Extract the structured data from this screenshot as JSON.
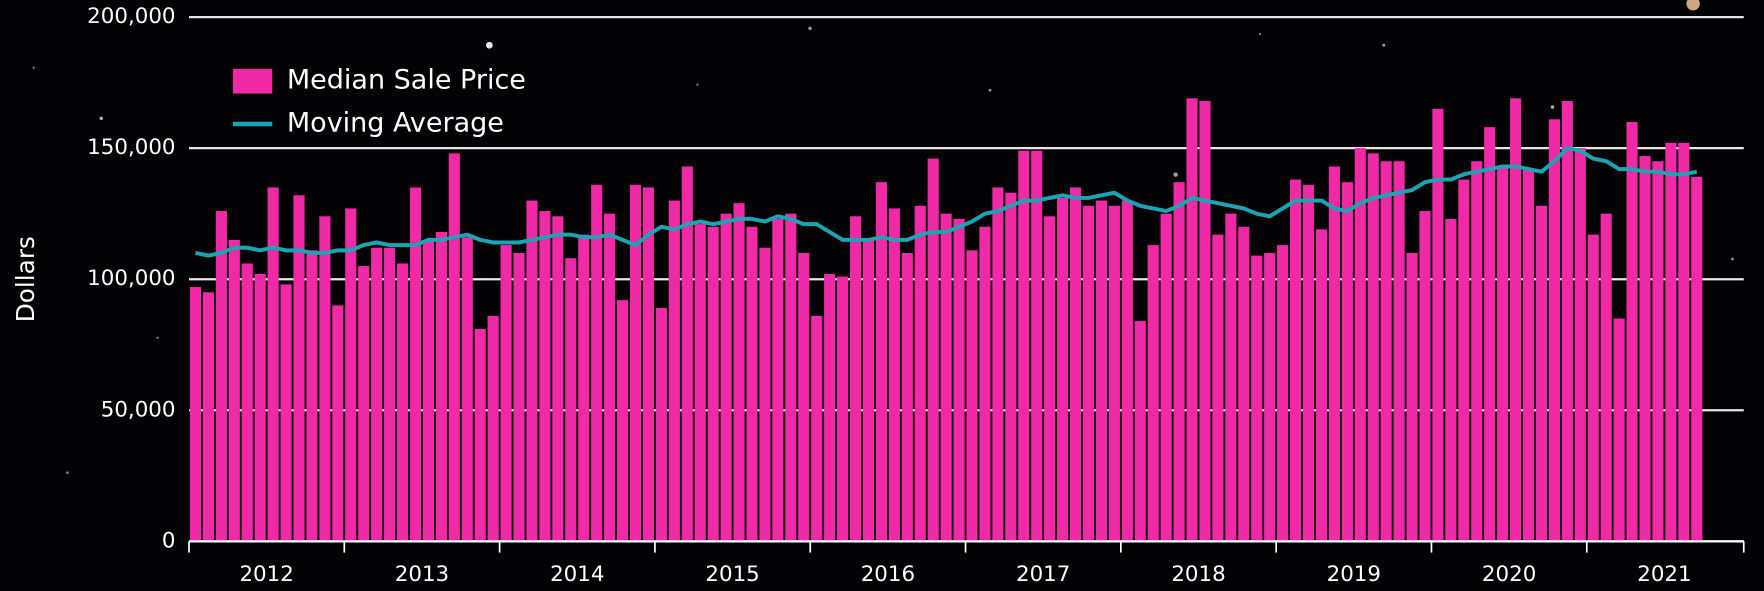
{
  "chart_data": {
    "type": "bar",
    "y_label": "Dollars",
    "ylim": [
      0,
      200000
    ],
    "yticks": [
      {
        "value": 0,
        "label": "0"
      },
      {
        "value": 50000,
        "label": "50,000"
      },
      {
        "value": 100000,
        "label": "100,000"
      },
      {
        "value": 150000,
        "label": "150,000"
      },
      {
        "value": 200000,
        "label": "200,000"
      }
    ],
    "grid": true,
    "legend": "upper left",
    "categories": [
      null,
      null,
      null,
      null,
      null,
      null,
      "2012",
      null,
      null,
      null,
      null,
      null,
      null,
      null,
      null,
      null,
      null,
      null,
      "2013",
      null,
      null,
      null,
      null,
      null,
      null,
      null,
      null,
      null,
      null,
      null,
      "2014",
      null,
      null,
      null,
      null,
      null,
      null,
      null,
      null,
      null,
      null,
      null,
      "2015",
      null,
      null,
      null,
      null,
      null,
      null,
      null,
      null,
      null,
      null,
      null,
      "2016",
      null,
      null,
      null,
      null,
      null,
      null,
      null,
      null,
      null,
      null,
      null,
      "2017",
      null,
      null,
      null,
      null,
      null,
      null,
      null,
      null,
      null,
      null,
      null,
      "2018",
      null,
      null,
      null,
      null,
      null,
      null,
      null,
      null,
      null,
      null,
      null,
      "2019",
      null,
      null,
      null,
      null,
      null,
      null,
      null,
      null,
      null,
      null,
      null,
      "2020",
      null,
      null,
      null,
      null,
      null,
      null,
      null,
      null,
      null,
      null,
      null,
      "2021",
      null,
      null
    ],
    "series": [
      {
        "name": "Median Sale Price",
        "type": "bar",
        "color": "#f02aa6",
        "values": [
          97000,
          95000,
          126000,
          115000,
          106000,
          102000,
          135000,
          98000,
          132000,
          111000,
          124000,
          90000,
          127000,
          105000,
          112000,
          112000,
          106000,
          135000,
          115000,
          118000,
          148000,
          116000,
          81000,
          86000,
          113000,
          110000,
          130000,
          126000,
          124000,
          108000,
          117000,
          136000,
          125000,
          92000,
          136000,
          135000,
          89000,
          130000,
          143000,
          121000,
          120000,
          125000,
          129000,
          120000,
          112000,
          123000,
          125000,
          110000,
          86000,
          102000,
          101000,
          124000,
          115000,
          137000,
          127000,
          110000,
          128000,
          146000,
          125000,
          123000,
          111000,
          120000,
          135000,
          133000,
          149000,
          149000,
          124000,
          131000,
          135000,
          128000,
          130000,
          128000,
          130000,
          84000,
          113000,
          125000,
          137000,
          169000,
          168000,
          117000,
          125000,
          120000,
          109000,
          110000,
          113000,
          138000,
          136000,
          119000,
          143000,
          137000,
          150000,
          148000,
          145000,
          145000,
          110000,
          126000,
          165000,
          123000,
          138000,
          145000,
          158000,
          143000,
          169000,
          142000,
          128000,
          161000,
          168000,
          150000,
          117000,
          125000,
          85000,
          160000,
          147000,
          145000,
          152000,
          152000,
          139000
        ]
      },
      {
        "name": "Moving Average",
        "type": "line",
        "color": "#1ba5b3",
        "values": [
          110000,
          109000,
          110000,
          112000,
          112000,
          111000,
          112000,
          111000,
          111000,
          110000,
          110000,
          111000,
          111000,
          113000,
          114000,
          113000,
          113000,
          113000,
          115000,
          115000,
          116000,
          117000,
          115000,
          114000,
          114000,
          114000,
          115000,
          116000,
          117000,
          117000,
          116000,
          116000,
          117000,
          115000,
          113000,
          117000,
          120000,
          119000,
          121000,
          122000,
          121000,
          122000,
          123000,
          123000,
          122000,
          124000,
          123000,
          121000,
          121000,
          118000,
          115000,
          115000,
          115000,
          116000,
          115000,
          115000,
          117000,
          118000,
          118000,
          120000,
          122000,
          125000,
          126000,
          128000,
          130000,
          130000,
          131000,
          132000,
          131000,
          131000,
          132000,
          133000,
          130000,
          128000,
          127000,
          126000,
          128000,
          131000,
          130000,
          129000,
          128000,
          127000,
          125000,
          124000,
          127000,
          130000,
          130000,
          130000,
          127000,
          126000,
          129000,
          131000,
          132000,
          133000,
          134000,
          137000,
          138000,
          138000,
          140000,
          141000,
          142000,
          143000,
          143000,
          142000,
          141000,
          145000,
          150000,
          149000,
          146000,
          145000,
          142000,
          142000,
          141000,
          141000,
          140000,
          140000,
          141000
        ]
      }
    ]
  }
}
